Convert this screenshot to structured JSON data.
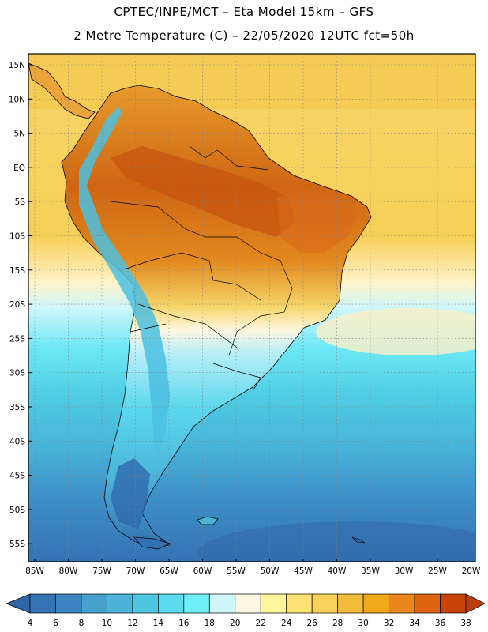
{
  "title_line1": "CPTEC/INPE/MCT –  Eta Model 15km – GFS",
  "title_line2": "2 Metre Temperature (C) – 22/05/2020 12UTC fct=50h",
  "lat_labels": [
    "15N",
    "10N",
    "5N",
    "EQ",
    "5S",
    "10S",
    "15S",
    "20S",
    "25S",
    "30S",
    "35S",
    "40S",
    "45S",
    "50S",
    "55S"
  ],
  "lon_labels": [
    "85W",
    "80W",
    "75W",
    "70W",
    "65W",
    "60W",
    "55W",
    "50W",
    "45W",
    "40W",
    "35W",
    "30W",
    "25W",
    "20W"
  ],
  "colorbar": {
    "labels": [
      "4",
      "6",
      "8",
      "10",
      "12",
      "14",
      "16",
      "18",
      "20",
      "22",
      "24",
      "26",
      "28",
      "30",
      "32",
      "34",
      "36",
      "38"
    ],
    "colors": [
      "#3573b4",
      "#3d84c2",
      "#48a0cc",
      "#4bb4d8",
      "#4ec8e0",
      "#5adcee",
      "#6cf0fa",
      "#cff7fb",
      "#fdf7e2",
      "#fff59a",
      "#fbe273",
      "#f7d158",
      "#f0bc3a",
      "#f0a818",
      "#e9871c",
      "#de6410",
      "#c84408"
    ]
  },
  "legend": {
    "ocean_north": "#f5cf5a",
    "ocean_south": "#47a6d4",
    "land_hot": "#d9741a",
    "land_cold": "#5ad8ee"
  }
}
